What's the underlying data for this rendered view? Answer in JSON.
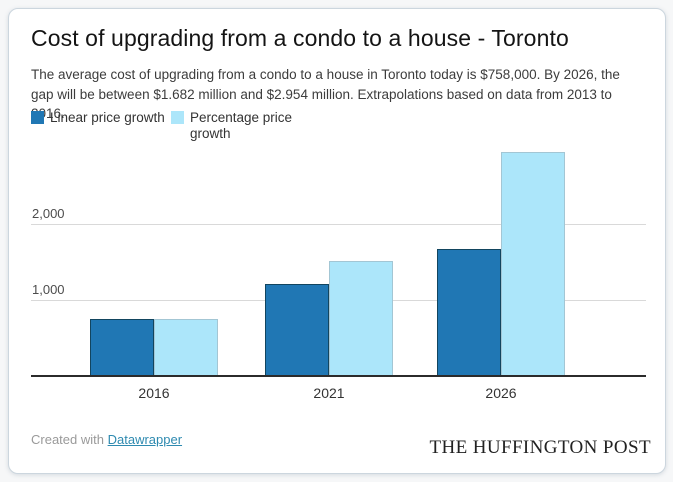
{
  "card": {
    "title": "Cost of upgrading from a condo to a house - Toronto",
    "description": "The average cost of upgrading from a condo to a house in Toronto today is $758,000. By 2026, the gap will be between $1.682 million and $2.954 million. Extrapolations based on data from 2013 to 2016."
  },
  "legend": {
    "items": [
      {
        "label": "Linear price growth",
        "color": "#2077b4"
      },
      {
        "label": "Percentage price growth",
        "color": "#ace6fa"
      }
    ]
  },
  "chart_data": {
    "type": "bar",
    "title": "Cost of upgrading from a condo to a house - Toronto",
    "subtitle": "The average cost of upgrading from a condo to a house in Toronto today is $758,000. By 2026, the gap will be between $1.682 million and $2.954 million. Extrapolations based on data from 2013 to 2016.",
    "categories": [
      "2016",
      "2021",
      "2026"
    ],
    "series": [
      {
        "name": "Linear price growth",
        "color": "#2077b4",
        "values": [
          758,
          1220,
          1682
        ]
      },
      {
        "name": "Percentage price growth",
        "color": "#ace6fa",
        "values": [
          758,
          1525,
          2954
        ]
      }
    ],
    "xlabel": "",
    "ylabel": "",
    "ylim": [
      0,
      3000
    ],
    "y_ticks": [
      1000,
      2000
    ],
    "y_tick_labels": [
      "1,000",
      "2,000"
    ],
    "grid": true,
    "legend_position": "top-left"
  },
  "footer": {
    "created_with": "Created with",
    "datawrapper_link": "Datawrapper",
    "link_color": "#2e8ab0",
    "publisher": "THE HUFFINGTON POST"
  }
}
